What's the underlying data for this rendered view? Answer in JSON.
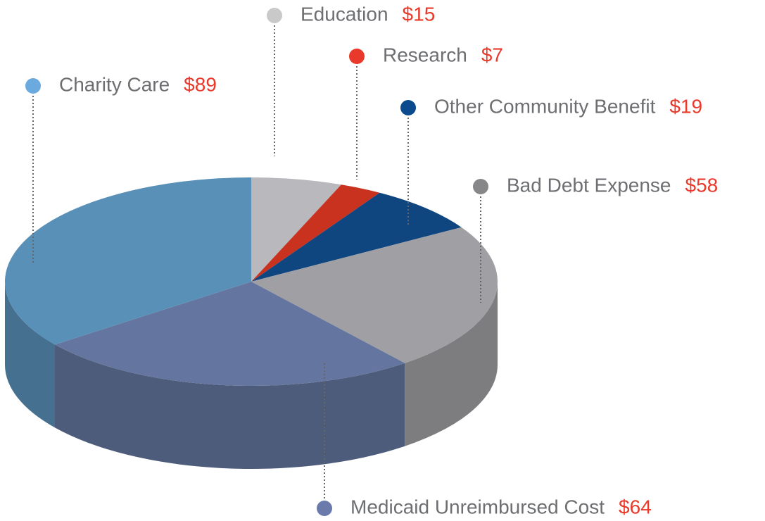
{
  "chart_data": {
    "type": "pie3d",
    "categories": [
      "Education",
      "Research",
      "Other Community Benefit",
      "Bad Debt Expense",
      "Medicaid Unreimbursed Cost",
      "Charity Care"
    ],
    "values": [
      15,
      7,
      19,
      58,
      64,
      89
    ],
    "value_labels": [
      "$15",
      "$7",
      "$19",
      "$58",
      "$64",
      "$89"
    ],
    "colors": [
      "#b9b9bd",
      "#c8321f",
      "#0f4680",
      "#a0a0a4",
      "#64769f",
      "#5890b8"
    ],
    "marker_colors": [
      "#c9c9c9",
      "#e8392a",
      "#0b4a8c",
      "#87878a",
      "#6a7aab",
      "#6aaade"
    ]
  }
}
